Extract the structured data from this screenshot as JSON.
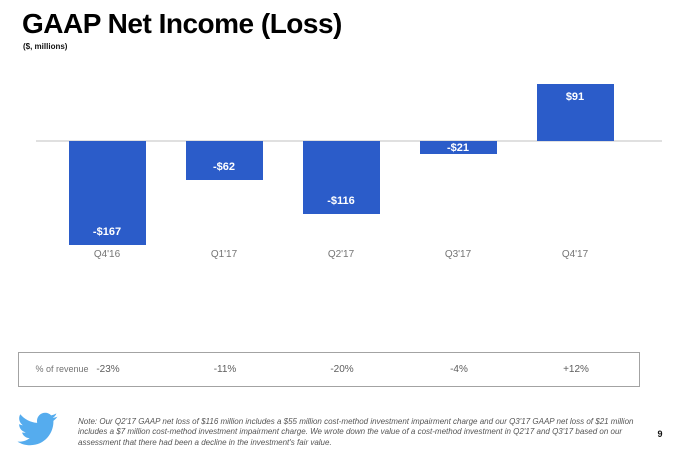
{
  "page": {
    "title": "GAAP Net Income (Loss)",
    "subtitle": "($, millions)",
    "page_number": "9",
    "note": "Note: Our Q2'17 GAAP net loss of $116 million includes a $55 million cost-method investment impairment charge and our Q3'17 GAAP net loss of $21 million includes a $7 million cost-method investment impairment charge.  We wrote down the value of a cost-method investment in Q2'17 and Q3'17 based on our assessment that there had been a decline in the investment's fair value."
  },
  "colors": {
    "bar_blue": "#2B5CC9",
    "twitter_blue": "#55ACEE",
    "axis_line": "#e0e0e0"
  },
  "chart_data": {
    "type": "bar",
    "title": "GAAP Net Income (Loss)",
    "unit_label": "($, millions)",
    "categories": [
      "Q4'16",
      "Q1'17",
      "Q2'17",
      "Q3'17",
      "Q4'17"
    ],
    "values": [
      -167,
      -62,
      -116,
      -21,
      91
    ],
    "value_labels": [
      "-$167",
      "-$62",
      "-$116",
      "-$21",
      "$91"
    ],
    "baseline": 0,
    "ylim": [
      -180,
      100
    ],
    "grid": false,
    "legend": false
  },
  "table": {
    "row_label": "% of revenue",
    "values": [
      "-23%",
      "-11%",
      "-20%",
      "-4%",
      "+12%"
    ]
  },
  "icons": {
    "twitter_bird": "twitter-bird-logo"
  }
}
